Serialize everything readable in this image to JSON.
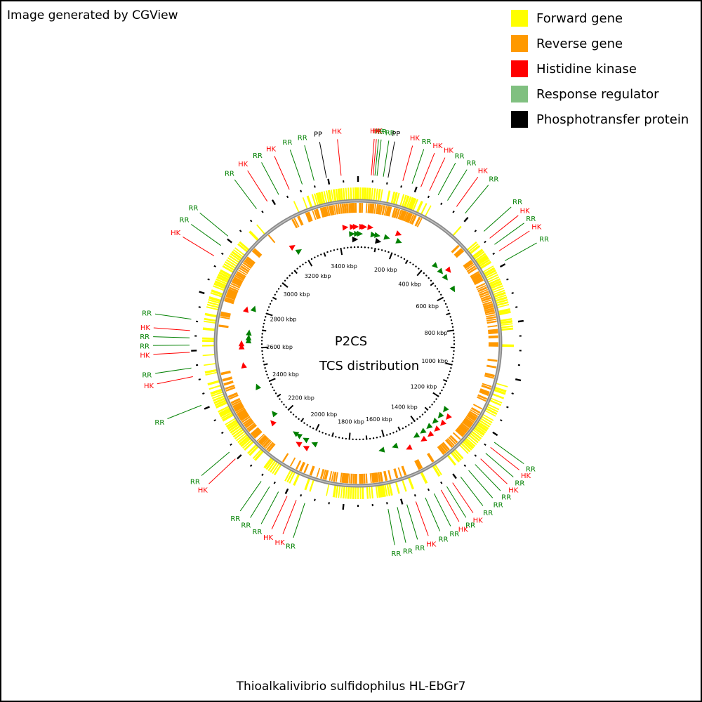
{
  "header": {
    "note": "Image generated by CGView"
  },
  "legend": {
    "items": [
      {
        "label": "Forward gene",
        "color": "#ffff00"
      },
      {
        "label": "Reverse gene",
        "color": "#ff9900"
      },
      {
        "label": "Histidine kinase",
        "color": "#ff0000"
      },
      {
        "label": "Response regulator",
        "color": "#80c080"
      },
      {
        "label": "Phosphotransfer protein",
        "color": "#000000"
      }
    ]
  },
  "map": {
    "center_title": "P2CS",
    "center_subtitle": "TCS distribution",
    "genome_length_kbp": 3500,
    "ruler_labels": [
      "200 kbp",
      "400 kbp",
      "600 kbp",
      "800 kbp",
      "1000 kbp",
      "1200 kbp",
      "1400 kbp",
      "1600 kbp",
      "1800 kbp",
      "2000 kbp",
      "2200 kbp",
      "2400 kbp",
      "2600 kbp",
      "2800 kbp",
      "3000 kbp",
      "3200 kbp",
      "3400 kbp"
    ],
    "label_colors": {
      "RR": "#008000",
      "HK": "#ff0000",
      "PP": "#000000"
    },
    "tcs_labels": [
      {
        "text": "RR",
        "kbp": 63
      },
      {
        "text": "RR",
        "kbp": 56
      },
      {
        "text": "HK",
        "kbp": 50
      },
      {
        "text": "HK",
        "kbp": 44
      },
      {
        "text": "RR",
        "kbp": 84
      },
      {
        "text": "PP",
        "kbp": 100
      },
      {
        "text": "HK",
        "kbp": 150
      },
      {
        "text": "RR",
        "kbp": 182
      },
      {
        "text": "HK",
        "kbp": 213
      },
      {
        "text": "HK",
        "kbp": 244
      },
      {
        "text": "RR",
        "kbp": 276
      },
      {
        "text": "RR",
        "kbp": 312
      },
      {
        "text": "HK",
        "kbp": 348
      },
      {
        "text": "RR",
        "kbp": 384
      },
      {
        "text": "RR",
        "kbp": 470
      },
      {
        "text": "HK",
        "kbp": 500
      },
      {
        "text": "RR",
        "kbp": 526
      },
      {
        "text": "HK",
        "kbp": 552
      },
      {
        "text": "RR",
        "kbp": 590
      },
      {
        "text": "RR",
        "kbp": 1225
      },
      {
        "text": "HK",
        "kbp": 1246
      },
      {
        "text": "RR",
        "kbp": 1271
      },
      {
        "text": "HK",
        "kbp": 1296
      },
      {
        "text": "RR",
        "kbp": 1322
      },
      {
        "text": "RR",
        "kbp": 1351
      },
      {
        "text": "RR",
        "kbp": 1385
      },
      {
        "text": "HK",
        "kbp": 1418
      },
      {
        "text": "RR",
        "kbp": 1441
      },
      {
        "text": "HK",
        "kbp": 1463
      },
      {
        "text": "RR",
        "kbp": 1489
      },
      {
        "text": "RR",
        "kbp": 1521
      },
      {
        "text": "HK",
        "kbp": 1555
      },
      {
        "text": "RR",
        "kbp": 1586
      },
      {
        "text": "RR",
        "kbp": 1619
      },
      {
        "text": "RR",
        "kbp": 1650
      },
      {
        "text": "RR",
        "kbp": 1929
      },
      {
        "text": "HK",
        "kbp": 1959
      },
      {
        "text": "HK",
        "kbp": 1992
      },
      {
        "text": "RR",
        "kbp": 2024
      },
      {
        "text": "RR",
        "kbp": 2058
      },
      {
        "text": "RR",
        "kbp": 2091
      },
      {
        "text": "HK",
        "kbp": 2204
      },
      {
        "text": "RR",
        "kbp": 2234
      },
      {
        "text": "RR",
        "kbp": 2415
      },
      {
        "text": "HK",
        "kbp": 2514
      },
      {
        "text": "RR",
        "kbp": 2543
      },
      {
        "text": "HK",
        "kbp": 2595
      },
      {
        "text": "RR",
        "kbp": 2619
      },
      {
        "text": "RR",
        "kbp": 2643
      },
      {
        "text": "HK",
        "kbp": 2667
      },
      {
        "text": "RR",
        "kbp": 2705
      },
      {
        "text": "HK",
        "kbp": 2929
      },
      {
        "text": "RR",
        "kbp": 2970
      },
      {
        "text": "RR",
        "kbp": 3009
      },
      {
        "text": "RR",
        "kbp": 3140
      },
      {
        "text": "HK",
        "kbp": 3183
      },
      {
        "text": "RR",
        "kbp": 3227
      },
      {
        "text": "HK",
        "kbp": 3266
      },
      {
        "text": "RR",
        "kbp": 3312
      },
      {
        "text": "RR",
        "kbp": 3353
      },
      {
        "text": "PP",
        "kbp": 3395
      },
      {
        "text": "HK",
        "kbp": 3444
      }
    ],
    "tcs_markers": [
      {
        "kbp": 3440,
        "type": "HK"
      },
      {
        "kbp": 3475,
        "type": "HK"
      },
      {
        "kbp": 3490,
        "type": "HK"
      },
      {
        "kbp": 3470,
        "type": "RR"
      },
      {
        "kbp": 3495,
        "type": "RR"
      },
      {
        "kbp": 10,
        "type": "RR"
      },
      {
        "kbp": 30,
        "type": "HK"
      },
      {
        "kbp": 20,
        "type": "HK"
      },
      {
        "kbp": 60,
        "type": "HK"
      },
      {
        "kbp": 80,
        "type": "RR"
      },
      {
        "kbp": 100,
        "type": "RR"
      },
      {
        "kbp": 3485,
        "type": "PP"
      },
      {
        "kbp": 110,
        "type": "PP"
      },
      {
        "kbp": 150,
        "type": "RR"
      },
      {
        "kbp": 200,
        "type": "HK"
      },
      {
        "kbp": 215,
        "type": "RR"
      },
      {
        "kbp": 440,
        "type": "RR"
      },
      {
        "kbp": 480,
        "type": "RR"
      },
      {
        "kbp": 500,
        "type": "HK"
      },
      {
        "kbp": 520,
        "type": "RR"
      },
      {
        "kbp": 590,
        "type": "RR"
      },
      {
        "kbp": 1240,
        "type": "RR"
      },
      {
        "kbp": 1260,
        "type": "HK"
      },
      {
        "kbp": 1280,
        "type": "RR"
      },
      {
        "kbp": 1300,
        "type": "HK"
      },
      {
        "kbp": 1320,
        "type": "RR"
      },
      {
        "kbp": 1340,
        "type": "HK"
      },
      {
        "kbp": 1360,
        "type": "RR"
      },
      {
        "kbp": 1380,
        "type": "HK"
      },
      {
        "kbp": 1400,
        "type": "RR"
      },
      {
        "kbp": 1420,
        "type": "HK"
      },
      {
        "kbp": 1440,
        "type": "RR"
      },
      {
        "kbp": 1500,
        "type": "HK"
      },
      {
        "kbp": 1560,
        "type": "RR"
      },
      {
        "kbp": 1630,
        "type": "RR"
      },
      {
        "kbp": 1980,
        "type": "RR"
      },
      {
        "kbp": 2010,
        "type": "HK"
      },
      {
        "kbp": 2030,
        "type": "RR"
      },
      {
        "kbp": 2050,
        "type": "HK"
      },
      {
        "kbp": 2070,
        "type": "RR"
      },
      {
        "kbp": 2090,
        "type": "RR"
      },
      {
        "kbp": 2210,
        "type": "HK"
      },
      {
        "kbp": 2240,
        "type": "RR"
      },
      {
        "kbp": 2400,
        "type": "RR"
      },
      {
        "kbp": 2520,
        "type": "HK"
      },
      {
        "kbp": 2610,
        "type": "HK"
      },
      {
        "kbp": 2625,
        "type": "HK"
      },
      {
        "kbp": 2640,
        "type": "RR"
      },
      {
        "kbp": 2655,
        "type": "RR"
      },
      {
        "kbp": 2680,
        "type": "RR"
      },
      {
        "kbp": 2790,
        "type": "HK"
      },
      {
        "kbp": 2805,
        "type": "RR"
      },
      {
        "kbp": 3170,
        "type": "HK"
      },
      {
        "kbp": 3185,
        "type": "RR"
      }
    ]
  },
  "footer": {
    "organism": "Thioalkalivibrio sulfidophilus HL-EbGr7"
  }
}
